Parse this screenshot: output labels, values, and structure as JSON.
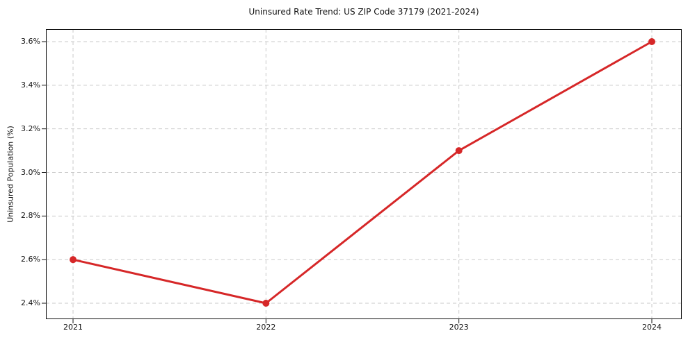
{
  "chart_data": {
    "type": "line",
    "title": "Uninsured Rate Trend: US ZIP Code 37179 (2021-2024)",
    "xlabel": "",
    "ylabel": "Uninsured Population (%)",
    "x": [
      2021,
      2022,
      2023,
      2024
    ],
    "x_tick_labels": [
      "2021",
      "2022",
      "2023",
      "2024"
    ],
    "values": [
      2.6,
      2.4,
      3.1,
      3.6
    ],
    "y_ticks": [
      2.4,
      2.6,
      2.8,
      3.0,
      3.2,
      3.4,
      3.6
    ],
    "y_tick_labels": [
      "2.4%",
      "2.6%",
      "2.8%",
      "3.0%",
      "3.2%",
      "3.4%",
      "3.6%"
    ],
    "ylim": [
      2.33,
      3.66
    ],
    "grid": true,
    "grid_style": "dashed",
    "legend_position": "none",
    "marker": "circle",
    "colors": {
      "line": "#d62728",
      "marker": "#d62728",
      "grid": "#c9c9c9",
      "axis": "#111111",
      "background": "#ffffff"
    }
  }
}
